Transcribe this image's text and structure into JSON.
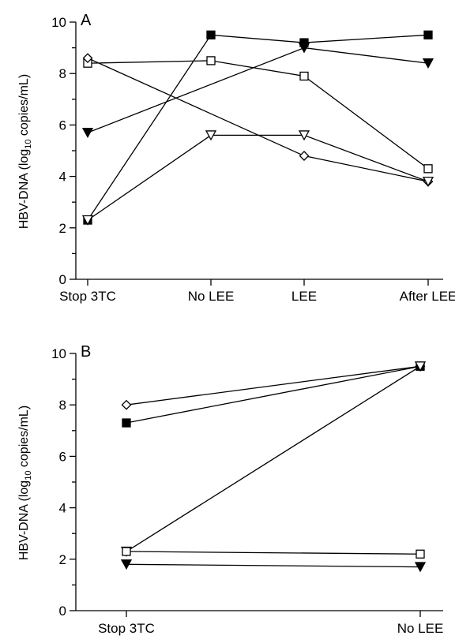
{
  "chart_data": [
    {
      "type": "line",
      "panel_label": "A",
      "ylabel_main": "HBV-DNA (log",
      "ylabel_sub": "10",
      "ylabel_end": " copies/mL)",
      "categories": [
        "Stop 3TC",
        "No LEE",
        "LEE",
        "After LEE"
      ],
      "ylim": [
        0,
        10
      ],
      "yticks": [
        "0",
        "2",
        "4",
        "6",
        "8",
        "10"
      ],
      "grid": false,
      "series": [
        {
          "marker": "square-filled",
          "values": [
            2.3,
            9.5,
            9.2,
            9.5
          ]
        },
        {
          "marker": "square-open",
          "values": [
            8.4,
            8.5,
            7.9,
            4.3
          ]
        },
        {
          "marker": "diamond-open",
          "values": [
            8.6,
            null,
            4.8,
            3.8
          ]
        },
        {
          "marker": "triangle-down-filled",
          "values": [
            5.7,
            null,
            9.0,
            8.4
          ]
        },
        {
          "marker": "triangle-down-open",
          "values": [
            2.3,
            5.6,
            5.6,
            3.8
          ]
        }
      ]
    },
    {
      "type": "line",
      "panel_label": "B",
      "ylabel_main": "HBV-DNA (log",
      "ylabel_sub": "10",
      "ylabel_end": " copies/mL)",
      "categories": [
        "Stop 3TC",
        "No LEE"
      ],
      "ylim": [
        0,
        10
      ],
      "yticks": [
        "0",
        "2",
        "4",
        "6",
        "8",
        "10"
      ],
      "grid": false,
      "series": [
        {
          "marker": "diamond-open",
          "values": [
            8.0,
            9.5
          ]
        },
        {
          "marker": "square-filled",
          "values": [
            7.3,
            9.5
          ]
        },
        {
          "marker": "triangle-down-open",
          "values": [
            2.3,
            9.5
          ]
        },
        {
          "marker": "square-open",
          "values": [
            2.3,
            2.2
          ]
        },
        {
          "marker": "triangle-down-filled",
          "values": [
            1.8,
            1.7
          ]
        }
      ]
    }
  ]
}
